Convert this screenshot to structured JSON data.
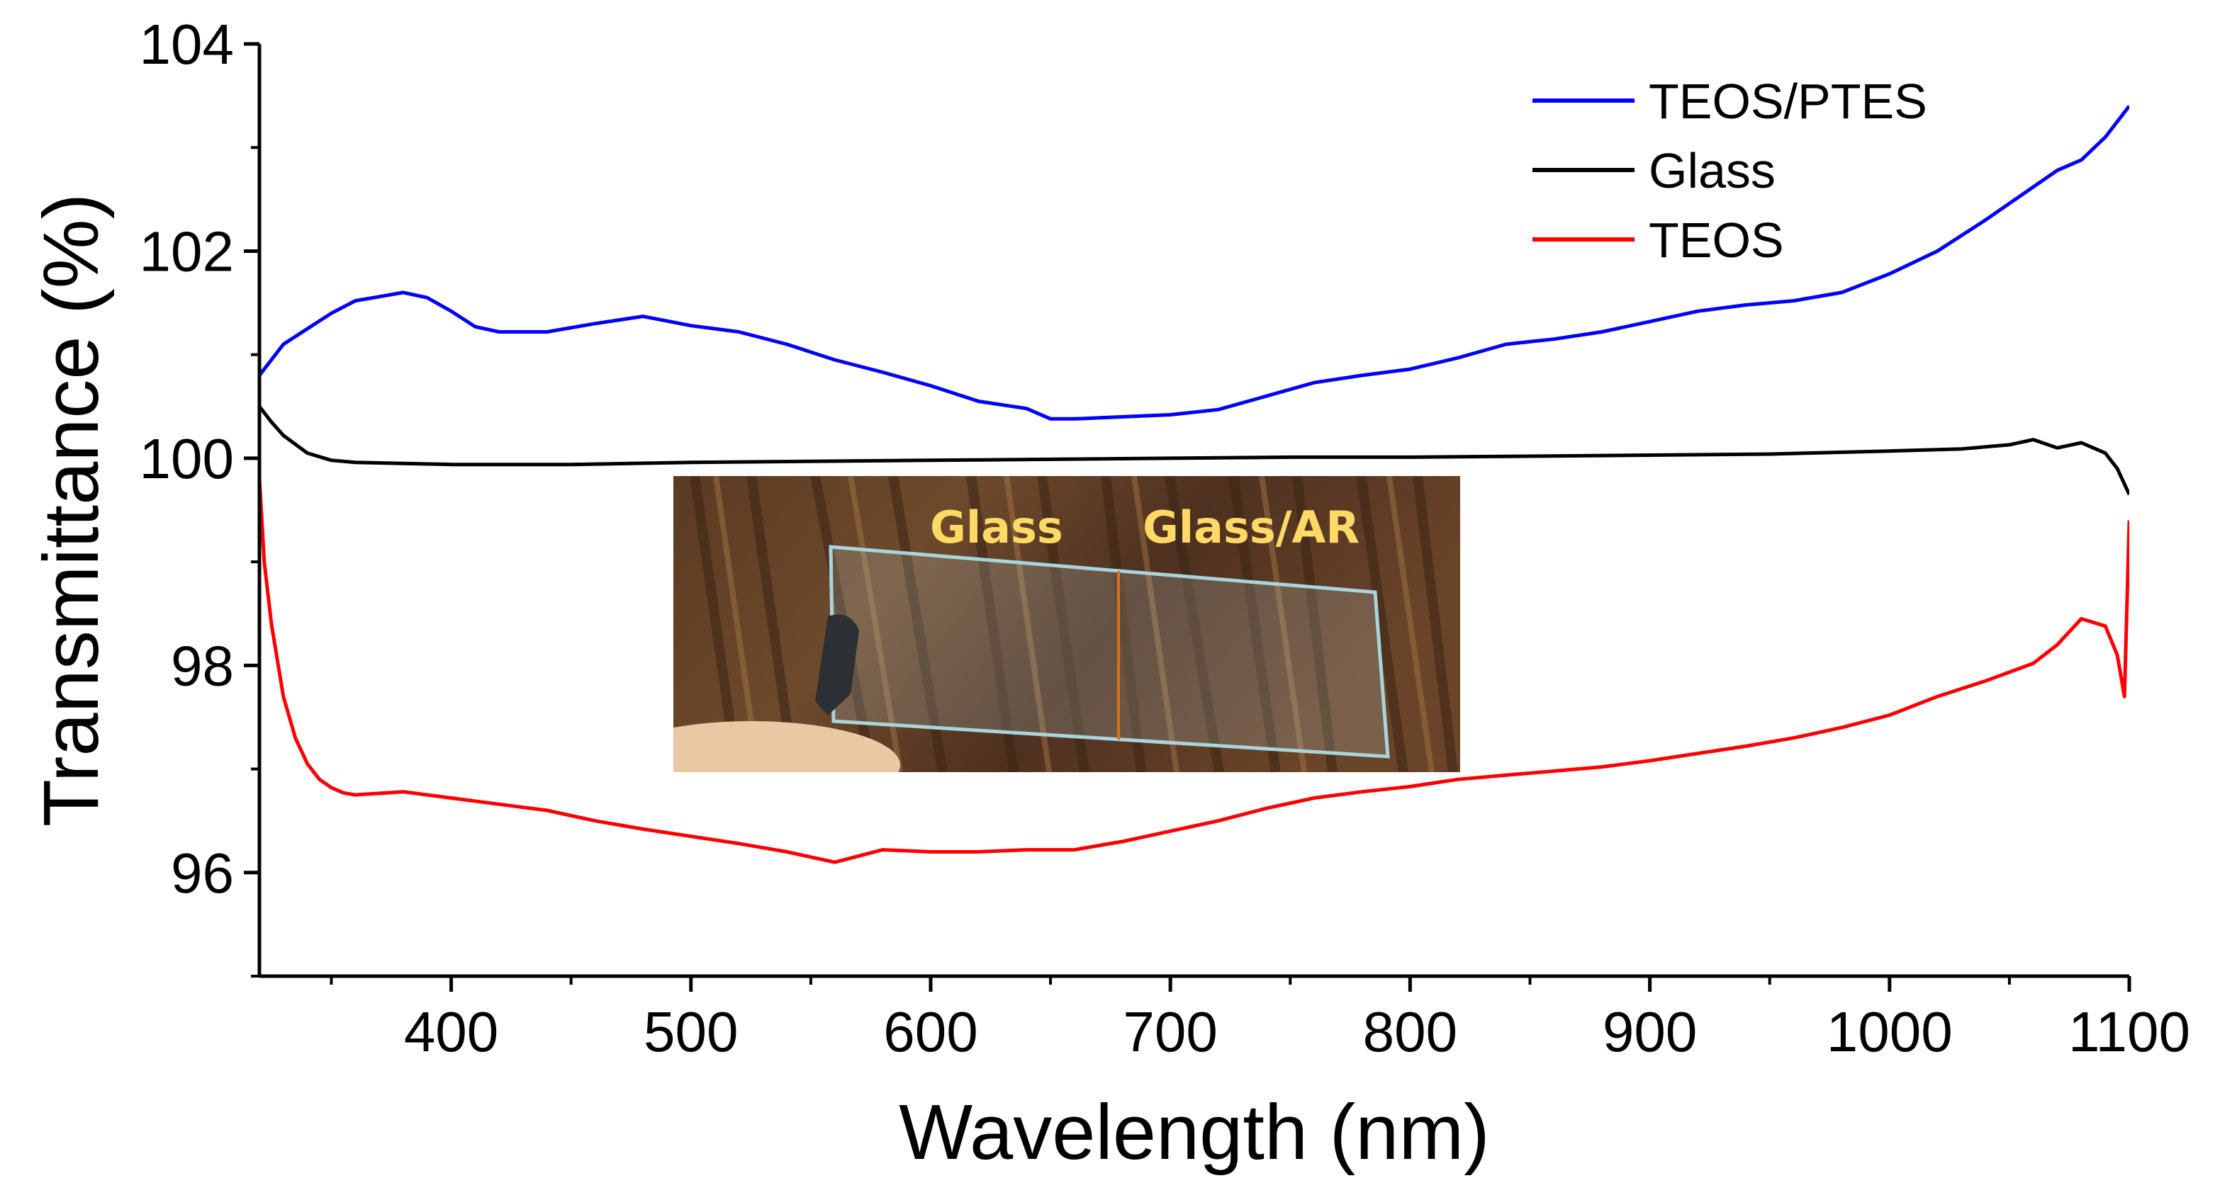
{
  "chart_data": {
    "type": "line",
    "title": "",
    "xlabel": "Wavelength (nm)",
    "ylabel": "Transmittance (%)",
    "xlim": [
      320,
      1100
    ],
    "ylim": [
      95,
      104
    ],
    "xticks": [
      400,
      500,
      600,
      700,
      800,
      900,
      1000,
      1100
    ],
    "yticks": [
      96,
      98,
      100,
      102,
      104
    ],
    "legend_position": "top-right",
    "series": [
      {
        "name": "TEOS/PTES",
        "color": "#0000ff",
        "x": [
          320,
          330,
          340,
          350,
          360,
          370,
          380,
          390,
          400,
          410,
          420,
          440,
          460,
          480,
          500,
          520,
          540,
          560,
          580,
          600,
          620,
          640,
          650,
          660,
          680,
          700,
          720,
          740,
          760,
          780,
          800,
          820,
          840,
          860,
          880,
          900,
          920,
          940,
          960,
          980,
          1000,
          1020,
          1040,
          1060,
          1070,
          1080,
          1090,
          1100
        ],
        "y": [
          100.8,
          101.1,
          101.25,
          101.4,
          101.52,
          101.56,
          101.6,
          101.55,
          101.42,
          101.27,
          101.22,
          101.22,
          101.3,
          101.37,
          101.28,
          101.22,
          101.1,
          100.95,
          100.83,
          100.7,
          100.55,
          100.48,
          100.38,
          100.38,
          100.4,
          100.42,
          100.47,
          100.6,
          100.73,
          100.8,
          100.86,
          100.97,
          101.1,
          101.15,
          101.22,
          101.32,
          101.42,
          101.48,
          101.52,
          101.6,
          101.78,
          102.0,
          102.3,
          102.62,
          102.78,
          102.88,
          103.1,
          103.4
        ]
      },
      {
        "name": "Glass",
        "color": "#000000",
        "x": [
          320,
          325,
          330,
          340,
          350,
          360,
          380,
          400,
          450,
          500,
          550,
          600,
          650,
          700,
          750,
          800,
          850,
          900,
          950,
          1000,
          1030,
          1050,
          1060,
          1070,
          1080,
          1090,
          1095,
          1100
        ],
        "y": [
          100.5,
          100.35,
          100.22,
          100.05,
          99.98,
          99.96,
          99.95,
          99.94,
          99.94,
          99.96,
          99.97,
          99.98,
          99.99,
          100.0,
          100.01,
          100.01,
          100.02,
          100.03,
          100.04,
          100.07,
          100.09,
          100.13,
          100.18,
          100.1,
          100.15,
          100.05,
          99.9,
          99.65
        ]
      },
      {
        "name": "TEOS",
        "color": "#ff0000",
        "x": [
          320,
          322,
          325,
          330,
          335,
          340,
          345,
          350,
          355,
          360,
          380,
          400,
          420,
          440,
          460,
          480,
          500,
          520,
          540,
          560,
          580,
          600,
          620,
          640,
          660,
          680,
          700,
          720,
          740,
          760,
          780,
          800,
          820,
          840,
          860,
          880,
          900,
          920,
          940,
          960,
          980,
          1000,
          1020,
          1040,
          1060,
          1070,
          1080,
          1090,
          1095,
          1098,
          1100
        ],
        "y": [
          99.8,
          99.0,
          98.4,
          97.7,
          97.3,
          97.05,
          96.9,
          96.82,
          96.77,
          96.75,
          96.78,
          96.72,
          96.66,
          96.6,
          96.5,
          96.42,
          96.35,
          96.28,
          96.2,
          96.1,
          96.22,
          96.2,
          96.2,
          96.22,
          96.22,
          96.3,
          96.4,
          96.5,
          96.62,
          96.72,
          96.78,
          96.83,
          96.9,
          96.94,
          96.98,
          97.02,
          97.08,
          97.15,
          97.22,
          97.3,
          97.4,
          97.52,
          97.7,
          97.85,
          98.02,
          98.2,
          98.45,
          98.38,
          98.1,
          97.7,
          99.4
        ]
      }
    ],
    "inset_photo": {
      "labels": [
        "Glass",
        "Glass/AR"
      ],
      "label_color": "#ffd966"
    }
  }
}
